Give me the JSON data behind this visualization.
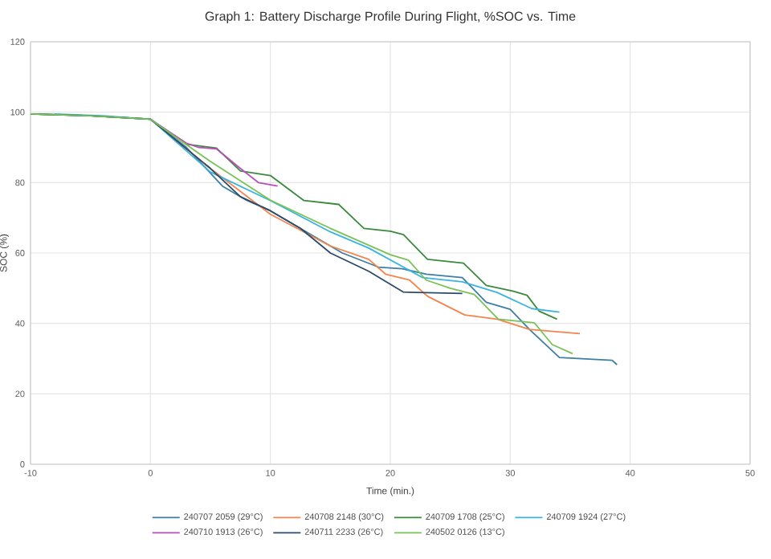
{
  "chart_data": {
    "type": "line",
    "title": "Graph 1: Battery Discharge Profile During Flight, %SOC vs. Time",
    "xlabel": "Time (min.)",
    "ylabel": "SOC (%)",
    "xlim": [
      -10,
      50
    ],
    "xticks": [
      -10,
      0,
      10,
      20,
      30,
      40,
      50
    ],
    "ylim": [
      0,
      120
    ],
    "yticks": [
      0,
      20,
      40,
      60,
      80,
      100,
      120
    ],
    "grid": true,
    "legend": "bottom",
    "marker": "none",
    "line_style": "solid",
    "series": [
      {
        "name": "240707 2059 (29°C)",
        "color": "#3d7ea6",
        "x": [
          -10,
          -5,
          0,
          3,
          6,
          8,
          10,
          13,
          16,
          19,
          21,
          23,
          26,
          28,
          30,
          31.6,
          34.1,
          38.5,
          38.9
        ],
        "values": [
          99.5,
          99,
          98,
          90,
          79,
          75,
          72,
          66,
          60,
          56,
          55.5,
          54,
          53,
          46,
          44,
          38.3,
          30.3,
          29.5,
          28.3
        ]
      },
      {
        "name": "240708 2148 (30°C)",
        "color": "#f4844c",
        "x": [
          0,
          5,
          10,
          15,
          18.2,
          19.6,
          21.6,
          23.1,
          26.2,
          28.9,
          31.6,
          35.8
        ],
        "values": [
          98,
          84,
          71,
          62,
          58.2,
          54,
          52.3,
          47.7,
          42.4,
          41.2,
          38.3,
          37.1
        ]
      },
      {
        "name": "240709 1708 (25°C)",
        "color": "#3a8a3c",
        "x": [
          -10,
          -5,
          0,
          3,
          5.5,
          7.5,
          10,
          12.8,
          15.7,
          17.8,
          20,
          21.1,
          23.1,
          26.1,
          28,
          30.2,
          31.4,
          32.4,
          33.9
        ],
        "values": [
          99.5,
          99,
          98,
          90.9,
          89.8,
          83.3,
          82,
          74.9,
          73.8,
          67,
          66.2,
          65.2,
          58.2,
          57.1,
          50.8,
          49.2,
          48,
          43.5,
          41.2
        ]
      },
      {
        "name": "240709 1924 (27°C)",
        "color": "#3bb3e0",
        "x": [
          -8,
          -4,
          0,
          5,
          10,
          15,
          18.2,
          22.7,
          26,
          28.9,
          31.8,
          34.1
        ],
        "values": [
          99.5,
          99,
          98,
          83,
          74.9,
          66,
          61.4,
          53,
          51.8,
          48.8,
          44.2,
          43.2
        ]
      },
      {
        "name": "240710 1913 (26°C)",
        "color": "#b84fb8",
        "x": [
          0,
          3,
          4,
          5.5,
          7.5,
          9,
          10.6
        ],
        "values": [
          98,
          91.2,
          90,
          89.6,
          84,
          80,
          79
        ]
      },
      {
        "name": "240711 2233 (26°C)",
        "color": "#2c4a6a",
        "x": [
          -10,
          -5,
          0,
          5,
          7.5,
          10,
          12.5,
          15,
          18.2,
          21.1,
          26
        ],
        "values": [
          99.5,
          99,
          98,
          84,
          76,
          72,
          67,
          60,
          54.8,
          48.9,
          48.5
        ]
      },
      {
        "name": "240502 0126 (13°C)",
        "color": "#78c257",
        "x": [
          -10,
          -5,
          0,
          5,
          10,
          15,
          20,
          21.5,
          23,
          25,
          27,
          29,
          32,
          33.5,
          35.2
        ],
        "values": [
          99.5,
          99,
          98,
          86,
          75,
          67,
          59.5,
          58,
          52.3,
          50,
          48.2,
          41.2,
          40.2,
          34,
          31.4
        ]
      }
    ]
  }
}
